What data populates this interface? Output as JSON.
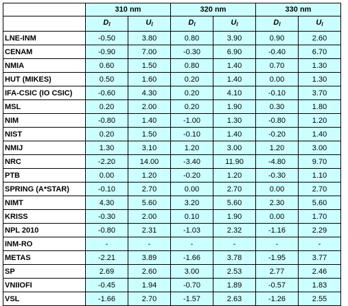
{
  "table": {
    "wavelengths": [
      "310 nm",
      "320 nm",
      "330 nm"
    ],
    "subheaders": [
      {
        "base": "D",
        "sub": "l"
      },
      {
        "base": "U",
        "sub": "l"
      },
      {
        "base": "D",
        "sub": "l"
      },
      {
        "base": "U",
        "sub": "l"
      },
      {
        "base": "D",
        "sub": "l"
      },
      {
        "base": "U",
        "sub": "l"
      }
    ],
    "rows": [
      {
        "lab": "LNE-INM",
        "values": [
          "-0.50",
          "3.80",
          "0.80",
          "3.90",
          "0.90",
          "2.60"
        ]
      },
      {
        "lab": "CENAM",
        "values": [
          "-0.90",
          "7.00",
          "-0.30",
          "6.90",
          "-0.40",
          "6.70"
        ]
      },
      {
        "lab": "NMIA",
        "values": [
          "0.60",
          "1.50",
          "0.80",
          "1.40",
          "0.70",
          "1.30"
        ]
      },
      {
        "lab": "HUT (MIKES)",
        "values": [
          "0.50",
          "1.60",
          "0.20",
          "1.40",
          "0.00",
          "1.30"
        ]
      },
      {
        "lab": "IFA-CSIC (IO CSIC)",
        "values": [
          "-0.60",
          "4.30",
          "0.20",
          "4.10",
          "-0.10",
          "3.70"
        ]
      },
      {
        "lab": "MSL",
        "values": [
          "0.20",
          "2.00",
          "0.20",
          "1.90",
          "0.30",
          "1.80"
        ]
      },
      {
        "lab": "NIM",
        "values": [
          "-0.80",
          "1.40",
          "-1.00",
          "1.30",
          "-0.80",
          "1.20"
        ]
      },
      {
        "lab": "NIST",
        "values": [
          "0.20",
          "1.50",
          "-0.10",
          "1.40",
          "-0.20",
          "1.40"
        ]
      },
      {
        "lab": "NMIJ",
        "values": [
          "1.30",
          "3.10",
          "1.20",
          "3.00",
          "1.20",
          "3.00"
        ]
      },
      {
        "lab": "NRC",
        "values": [
          "-2.20",
          "14.00",
          "-3.40",
          "11.90",
          "-4.80",
          "9.70"
        ]
      },
      {
        "lab": "PTB",
        "values": [
          "0.00",
          "1.20",
          "-0.20",
          "1.20",
          "-0.30",
          "1.10"
        ]
      },
      {
        "lab": "SPRING (A*STAR)",
        "values": [
          "-0.10",
          "2.70",
          "0.00",
          "2.70",
          "0.00",
          "2.70"
        ]
      },
      {
        "lab": "NIMT",
        "values": [
          "4.30",
          "5.60",
          "3.20",
          "5.60",
          "2.30",
          "5.60"
        ]
      },
      {
        "lab": "KRISS",
        "values": [
          "-0.30",
          "2.00",
          "0.10",
          "1.90",
          "0.00",
          "1.70"
        ]
      },
      {
        "lab": "NPL 2010",
        "values": [
          "-0.80",
          "2.31",
          "-1.03",
          "2.32",
          "-1.16",
          "2.29"
        ]
      },
      {
        "lab": "INM-RO",
        "values": [
          "-",
          "-",
          "-",
          "-",
          "-",
          "-"
        ]
      },
      {
        "lab": "METAS",
        "values": [
          "-2.21",
          "3.89",
          "-1.66",
          "3.78",
          "-1.95",
          "3.77"
        ]
      },
      {
        "lab": "SP",
        "values": [
          "2.69",
          "2.60",
          "3.00",
          "2.53",
          "2.77",
          "2.46"
        ]
      },
      {
        "lab": "VNIIOFI",
        "values": [
          "-0.45",
          "1.94",
          "-0.70",
          "1.89",
          "-0.57",
          "1.83"
        ]
      },
      {
        "lab": "VSL",
        "values": [
          "-1.66",
          "2.70",
          "-1.57",
          "2.63",
          "-1.26",
          "2.55"
        ]
      }
    ]
  }
}
